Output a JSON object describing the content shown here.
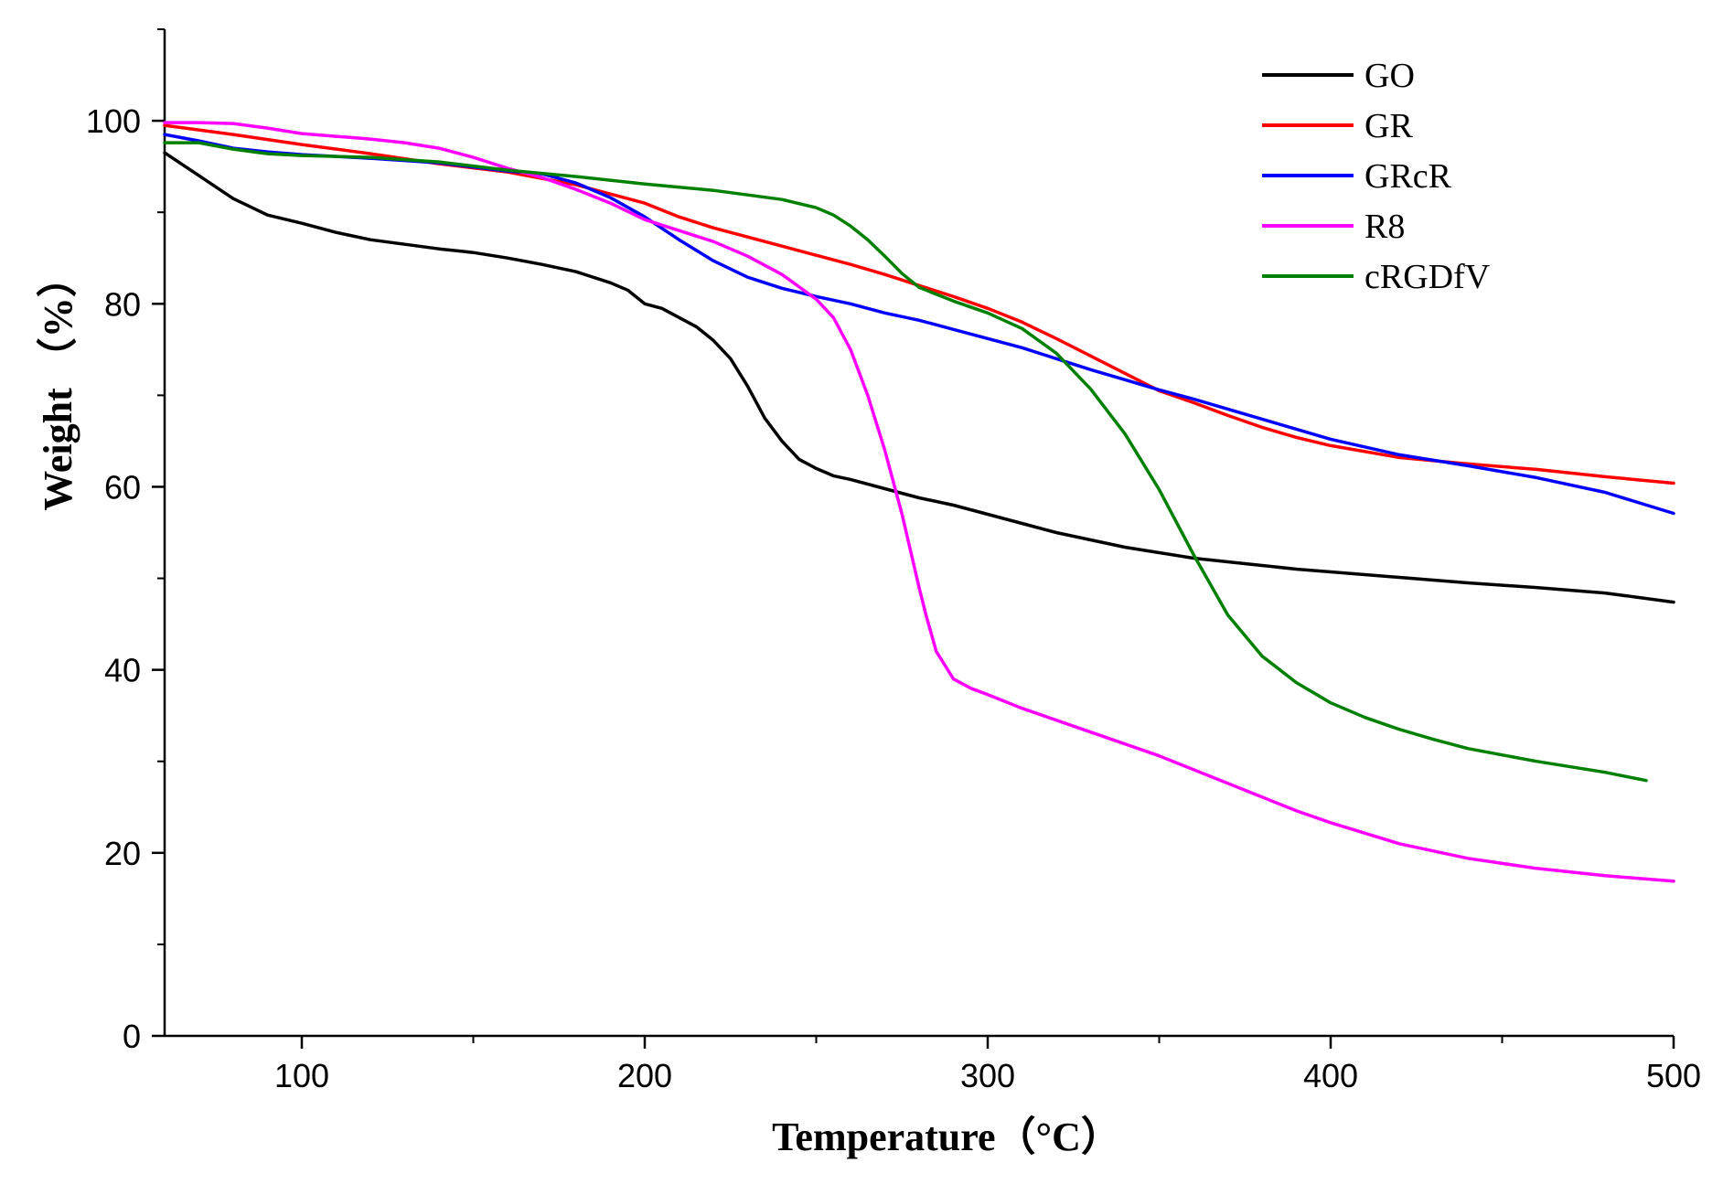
{
  "chart_data": {
    "type": "line",
    "title": "",
    "xlabel": "Temperature（°C）",
    "ylabel": "Weight （%）",
    "xlim": [
      60,
      500
    ],
    "ylim": [
      0,
      110
    ],
    "xticks": [
      100,
      200,
      300,
      400,
      500
    ],
    "xtick_labels": [
      "100",
      "200",
      "300",
      "400",
      "500"
    ],
    "yticks": [
      0,
      20,
      40,
      60,
      80,
      100
    ],
    "ytick_labels": [
      "0",
      "20",
      "40",
      "60",
      "80",
      "100"
    ],
    "grid": false,
    "legend_position": "top-right",
    "series": [
      {
        "name": "GO",
        "color": "#000000",
        "x": [
          60,
          70,
          80,
          90,
          100,
          110,
          120,
          130,
          140,
          150,
          160,
          170,
          180,
          190,
          195,
          200,
          205,
          210,
          215,
          220,
          225,
          230,
          235,
          240,
          245,
          250,
          255,
          260,
          270,
          280,
          290,
          300,
          310,
          320,
          330,
          340,
          350,
          360,
          370,
          380,
          390,
          400,
          420,
          440,
          460,
          480,
          500
        ],
        "y": [
          96.5,
          94,
          91.5,
          89.7,
          88.8,
          87.8,
          87.0,
          86.5,
          86.0,
          85.6,
          85.0,
          84.3,
          83.5,
          82.3,
          81.5,
          80.0,
          79.5,
          78.5,
          77.5,
          76.0,
          74.0,
          71.0,
          67.5,
          65.0,
          63.0,
          62.0,
          61.2,
          60.8,
          59.8,
          58.8,
          58.0,
          57.0,
          56.0,
          55.0,
          54.2,
          53.4,
          52.8,
          52.2,
          51.8,
          51.4,
          51.0,
          50.7,
          50.1,
          49.5,
          49.0,
          48.4,
          47.4
        ]
      },
      {
        "name": "GR",
        "color": "#ff0000",
        "x": [
          60,
          80,
          100,
          120,
          140,
          160,
          180,
          190,
          200,
          210,
          220,
          230,
          240,
          250,
          260,
          270,
          280,
          290,
          300,
          310,
          320,
          330,
          340,
          350,
          360,
          370,
          380,
          390,
          400,
          420,
          440,
          460,
          480,
          500
        ],
        "y": [
          99.5,
          98.5,
          97.4,
          96.4,
          95.3,
          94.4,
          93.0,
          92.0,
          91.0,
          89.5,
          88.3,
          87.3,
          86.3,
          85.3,
          84.3,
          83.2,
          82.0,
          80.8,
          79.5,
          78.0,
          76.2,
          74.3,
          72.4,
          70.5,
          69.2,
          67.8,
          66.5,
          65.4,
          64.5,
          63.2,
          62.5,
          61.9,
          61.1,
          60.4
        ]
      },
      {
        "name": "GRcR",
        "color": "#0000ff",
        "x": [
          60,
          70,
          80,
          90,
          100,
          120,
          140,
          160,
          170,
          180,
          190,
          200,
          210,
          220,
          230,
          240,
          250,
          260,
          270,
          280,
          290,
          300,
          310,
          320,
          330,
          340,
          350,
          360,
          370,
          380,
          390,
          400,
          420,
          440,
          460,
          480,
          500
        ],
        "y": [
          98.5,
          97.8,
          97.0,
          96.6,
          96.3,
          95.9,
          95.4,
          94.5,
          94.2,
          93.2,
          91.6,
          89.5,
          87.0,
          84.7,
          82.9,
          81.7,
          80.8,
          80.0,
          79.0,
          78.2,
          77.2,
          76.2,
          75.2,
          74.0,
          72.8,
          71.7,
          70.6,
          69.6,
          68.5,
          67.4,
          66.3,
          65.2,
          63.5,
          62.3,
          61.0,
          59.4,
          57.1
        ]
      },
      {
        "name": "R8",
        "color": "#ff00ff",
        "x": [
          60,
          70,
          80,
          90,
          100,
          110,
          120,
          130,
          140,
          150,
          160,
          170,
          180,
          190,
          200,
          210,
          220,
          230,
          240,
          250,
          255,
          260,
          265,
          270,
          275,
          280,
          282,
          285,
          290,
          295,
          300,
          310,
          320,
          330,
          340,
          350,
          360,
          370,
          380,
          390,
          400,
          420,
          440,
          460,
          480,
          500
        ],
        "y": [
          99.8,
          99.8,
          99.7,
          99.2,
          98.6,
          98.3,
          98.0,
          97.6,
          97.0,
          96.0,
          94.8,
          93.8,
          92.5,
          91.0,
          89.2,
          88.0,
          86.8,
          85.2,
          83.2,
          80.5,
          78.5,
          75.0,
          70.0,
          64.0,
          57.0,
          49.0,
          46.0,
          42.0,
          39.0,
          38.0,
          37.3,
          35.8,
          34.5,
          33.2,
          31.9,
          30.6,
          29.1,
          27.6,
          26.1,
          24.6,
          23.3,
          21.0,
          19.4,
          18.3,
          17.5,
          16.9
        ]
      },
      {
        "name": "cRGDfV",
        "color": "#008000",
        "x": [
          60,
          70,
          80,
          90,
          100,
          120,
          140,
          160,
          180,
          200,
          220,
          240,
          250,
          255,
          260,
          265,
          270,
          275,
          280,
          290,
          300,
          310,
          320,
          330,
          340,
          350,
          360,
          370,
          380,
          390,
          400,
          410,
          420,
          430,
          440,
          460,
          480,
          492
        ],
        "y": [
          97.6,
          97.6,
          96.9,
          96.4,
          96.2,
          96.0,
          95.5,
          94.6,
          93.9,
          93.1,
          92.4,
          91.4,
          90.5,
          89.7,
          88.5,
          87.0,
          85.2,
          83.3,
          81.8,
          80.3,
          79.0,
          77.3,
          74.6,
          70.7,
          65.8,
          59.7,
          52.6,
          46.0,
          41.5,
          38.6,
          36.4,
          34.8,
          33.5,
          32.4,
          31.4,
          30.0,
          28.8,
          27.9
        ]
      }
    ]
  }
}
